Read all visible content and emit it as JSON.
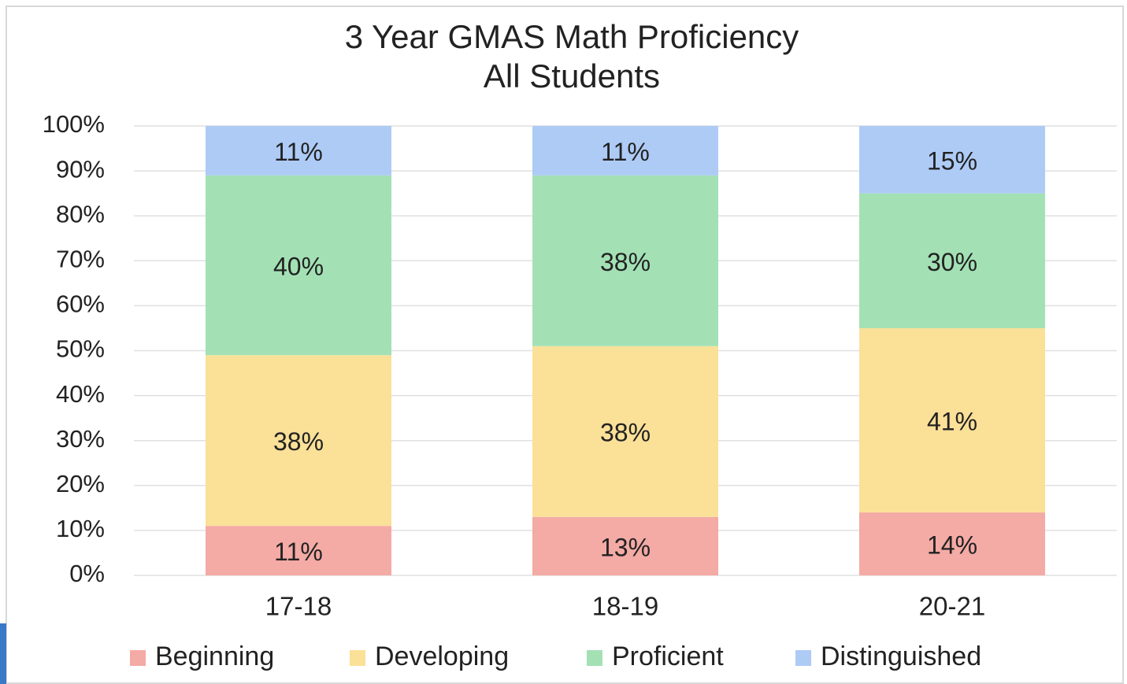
{
  "chart_data": {
    "type": "stacked_bar",
    "title": "3 Year GMAS Math Proficiency",
    "subtitle": "All Students",
    "categories": [
      "17-18",
      "18-19",
      "20-21"
    ],
    "series": [
      {
        "name": "Beginning",
        "color": "#f4aaa5",
        "values": [
          11,
          13,
          14
        ],
        "value_labels": [
          "11%",
          "13%",
          "14%"
        ]
      },
      {
        "name": "Developing",
        "color": "#fbe098",
        "values": [
          38,
          38,
          41
        ],
        "value_labels": [
          "38%",
          "38%",
          "41%"
        ]
      },
      {
        "name": "Proficient",
        "color": "#a3e1b5",
        "values": [
          40,
          38,
          30
        ],
        "value_labels": [
          "40%",
          "38%",
          "30%"
        ]
      },
      {
        "name": "Distinguished",
        "color": "#aecbf6",
        "values": [
          11,
          11,
          15
        ],
        "value_labels": [
          "11%",
          "11%",
          "15%"
        ]
      }
    ],
    "ylim": [
      0,
      100
    ],
    "yticks": [
      {
        "value": 0,
        "label": "0%"
      },
      {
        "value": 10,
        "label": "10%"
      },
      {
        "value": 20,
        "label": "20%"
      },
      {
        "value": 30,
        "label": "30%"
      },
      {
        "value": 40,
        "label": "40%"
      },
      {
        "value": 50,
        "label": "50%"
      },
      {
        "value": 60,
        "label": "60%"
      },
      {
        "value": 70,
        "label": "70%"
      },
      {
        "value": 80,
        "label": "80%"
      },
      {
        "value": 90,
        "label": "90%"
      },
      {
        "value": 100,
        "label": "100%"
      }
    ],
    "grid": true,
    "legend": "bottom"
  }
}
